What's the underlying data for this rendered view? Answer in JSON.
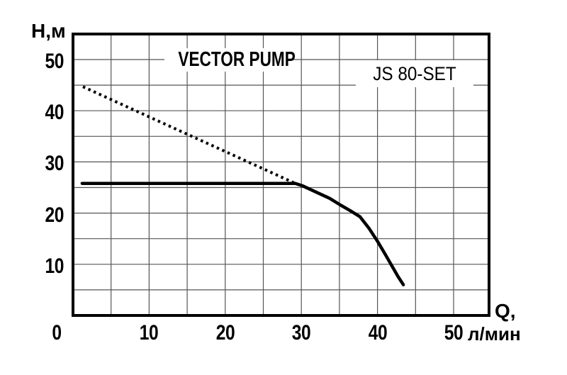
{
  "page": {
    "background": "#ffffff"
  },
  "chart_data": {
    "type": "line",
    "title": "VECTOR PUMP",
    "model_label": "JS 80-SET",
    "axis_labels": {
      "y": "H,м",
      "x_symbol": "Q,",
      "x_unit": "л/мин"
    },
    "xlabel": "Q, л/мин",
    "ylabel": "H, м",
    "xlim": [
      0,
      55
    ],
    "ylim": [
      0,
      55
    ],
    "x_ticks": [
      0,
      10,
      20,
      30,
      40,
      50
    ],
    "y_ticks": [
      10,
      20,
      30,
      40,
      50
    ],
    "grid_step": 5,
    "grid": true,
    "legend": "none",
    "line_color": "#000000",
    "grid_color": "#555555",
    "border_color": "#000000",
    "series": [
      {
        "name": "pump-head-capacity-curve",
        "style": "solid",
        "points": [
          [
            1.2,
            25.8
          ],
          [
            29.2,
            25.8
          ],
          [
            30.2,
            25.3
          ],
          [
            31.8,
            24.2
          ],
          [
            33.7,
            22.9
          ],
          [
            35.1,
            21.6
          ],
          [
            36.5,
            20.4
          ],
          [
            37.7,
            19.3
          ],
          [
            38.9,
            17.0
          ],
          [
            40.0,
            14.5
          ],
          [
            41.0,
            12.0
          ],
          [
            42.0,
            9.4
          ],
          [
            42.7,
            7.6
          ],
          [
            43.4,
            6.0
          ]
        ]
      },
      {
        "name": "dotted-reference-line",
        "style": "dotted",
        "points": [
          [
            1.3,
            44.7
          ],
          [
            29.2,
            25.8
          ]
        ]
      }
    ]
  }
}
